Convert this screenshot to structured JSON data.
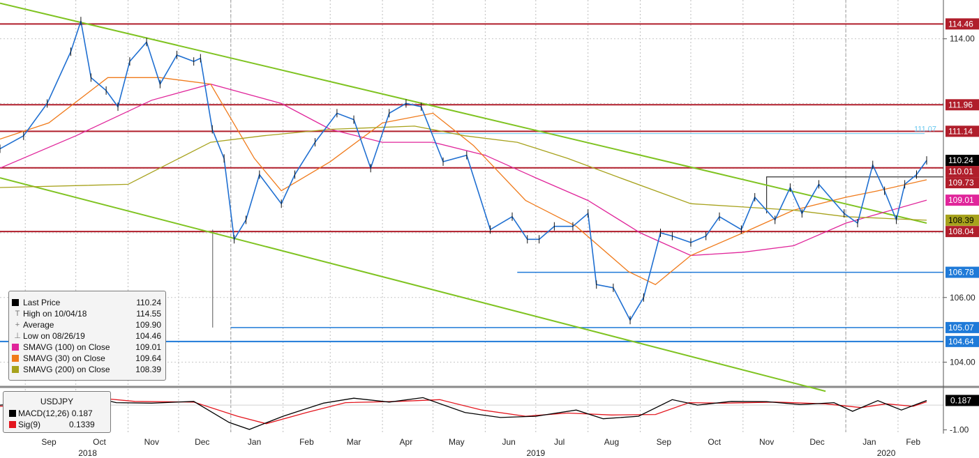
{
  "chart_data": [
    {
      "type": "line",
      "title": "",
      "ticker": "USDJPY",
      "xlabel": "",
      "ylabel": "",
      "ylim": [
        103.3,
        115.2
      ],
      "y_ticks": [
        "114.00",
        "106.00",
        "104.00"
      ],
      "month_labels": [
        "Sep",
        "Oct",
        "Nov",
        "Dec",
        "Jan",
        "Feb",
        "Mar",
        "Apr",
        "May",
        "Jun",
        "Jul",
        "Aug",
        "Sep",
        "Oct",
        "Nov",
        "Dec",
        "Jan",
        "Feb"
      ],
      "year_labels": [
        "2018",
        "2019",
        "2020"
      ],
      "grid": true,
      "x_start": "2018-08-17",
      "x_end": "2020-02-18",
      "series": [
        {
          "name": "Last Price",
          "color": "#1f6fd1",
          "points": [
            [
              "2018-08-17",
              110.6
            ],
            [
              "2018-08-31",
              111.0
            ],
            [
              "2018-09-14",
              112.0
            ],
            [
              "2018-09-28",
              113.6
            ],
            [
              "2018-10-04",
              114.55
            ],
            [
              "2018-10-10",
              112.8
            ],
            [
              "2018-10-19",
              112.4
            ],
            [
              "2018-10-26",
              111.9
            ],
            [
              "2018-11-02",
              113.3
            ],
            [
              "2018-11-12",
              113.9
            ],
            [
              "2018-11-20",
              112.6
            ],
            [
              "2018-11-30",
              113.5
            ],
            [
              "2018-12-10",
              113.3
            ],
            [
              "2018-12-14",
              113.4
            ],
            [
              "2018-12-21",
              111.2
            ],
            [
              "2018-12-28",
              110.3
            ],
            [
              "2019-01-03",
              107.8
            ],
            [
              "2019-01-10",
              108.4
            ],
            [
              "2019-01-18",
              109.8
            ],
            [
              "2019-01-31",
              108.9
            ],
            [
              "2019-02-08",
              109.8
            ],
            [
              "2019-02-20",
              110.8
            ],
            [
              "2019-03-05",
              111.7
            ],
            [
              "2019-03-15",
              111.5
            ],
            [
              "2019-03-25",
              110.0
            ],
            [
              "2019-04-05",
              111.7
            ],
            [
              "2019-04-15",
              112.0
            ],
            [
              "2019-04-24",
              111.9
            ],
            [
              "2019-05-07",
              110.2
            ],
            [
              "2019-05-21",
              110.4
            ],
            [
              "2019-06-04",
              108.1
            ],
            [
              "2019-06-17",
              108.5
            ],
            [
              "2019-06-26",
              107.8
            ],
            [
              "2019-07-03",
              107.8
            ],
            [
              "2019-07-12",
              108.2
            ],
            [
              "2019-07-23",
              108.2
            ],
            [
              "2019-08-01",
              108.6
            ],
            [
              "2019-08-06",
              106.4
            ],
            [
              "2019-08-16",
              106.3
            ],
            [
              "2019-08-26",
              105.3
            ],
            [
              "2019-09-03",
              106.0
            ],
            [
              "2019-09-13",
              108.0
            ],
            [
              "2019-09-20",
              107.9
            ],
            [
              "2019-10-01",
              107.7
            ],
            [
              "2019-10-10",
              107.9
            ],
            [
              "2019-10-18",
              108.5
            ],
            [
              "2019-10-31",
              108.1
            ],
            [
              "2019-11-08",
              109.1
            ],
            [
              "2019-11-20",
              108.4
            ],
            [
              "2019-11-29",
              109.4
            ],
            [
              "2019-12-06",
              108.6
            ],
            [
              "2019-12-16",
              109.5
            ],
            [
              "2019-12-31",
              108.6
            ],
            [
              "2020-01-08",
              108.3
            ],
            [
              "2020-01-17",
              110.1
            ],
            [
              "2020-01-24",
              109.3
            ],
            [
              "2020-01-31",
              108.4
            ],
            [
              "2020-02-05",
              109.5
            ],
            [
              "2020-02-12",
              109.8
            ],
            [
              "2020-02-18",
              110.24
            ]
          ]
        },
        {
          "name": "SMAVG (100) on Close",
          "color": "#e0259a",
          "points": [
            [
              "2018-08-17",
              110.0
            ],
            [
              "2018-10-01",
              111.0
            ],
            [
              "2018-11-15",
              112.1
            ],
            [
              "2018-12-20",
              112.6
            ],
            [
              "2019-01-31",
              112.0
            ],
            [
              "2019-03-01",
              111.2
            ],
            [
              "2019-04-01",
              110.8
            ],
            [
              "2019-05-01",
              110.8
            ],
            [
              "2019-06-01",
              110.4
            ],
            [
              "2019-07-01",
              109.7
            ],
            [
              "2019-08-01",
              109.0
            ],
            [
              "2019-09-01",
              108.0
            ],
            [
              "2019-10-01",
              107.3
            ],
            [
              "2019-11-01",
              107.4
            ],
            [
              "2019-12-01",
              107.6
            ],
            [
              "2020-01-01",
              108.3
            ],
            [
              "2020-02-18",
              109.01
            ]
          ]
        },
        {
          "name": "SMAVG (30) on Close",
          "color": "#f07a1a",
          "points": [
            [
              "2018-08-17",
              110.9
            ],
            [
              "2018-09-15",
              111.4
            ],
            [
              "2018-10-20",
              112.8
            ],
            [
              "2018-11-20",
              112.8
            ],
            [
              "2018-12-20",
              112.6
            ],
            [
              "2019-01-15",
              110.3
            ],
            [
              "2019-01-31",
              109.3
            ],
            [
              "2019-03-01",
              110.2
            ],
            [
              "2019-04-01",
              111.4
            ],
            [
              "2019-05-01",
              111.7
            ],
            [
              "2019-05-25",
              110.7
            ],
            [
              "2019-06-25",
              109.0
            ],
            [
              "2019-07-25",
              108.2
            ],
            [
              "2019-08-25",
              106.8
            ],
            [
              "2019-09-10",
              106.4
            ],
            [
              "2019-10-01",
              107.3
            ],
            [
              "2019-11-01",
              108.0
            ],
            [
              "2019-12-01",
              108.7
            ],
            [
              "2020-01-01",
              109.1
            ],
            [
              "2020-01-20",
              109.3
            ],
            [
              "2020-02-18",
              109.64
            ]
          ]
        },
        {
          "name": "SMAVG (200) on Close",
          "color": "#a7a21c",
          "points": [
            [
              "2018-08-17",
              109.4
            ],
            [
              "2018-11-01",
              109.5
            ],
            [
              "2018-12-20",
              110.8
            ],
            [
              "2019-01-20",
              111.0
            ],
            [
              "2019-03-01",
              111.2
            ],
            [
              "2019-04-20",
              111.3
            ],
            [
              "2019-05-20",
              111.0
            ],
            [
              "2019-06-20",
              110.8
            ],
            [
              "2019-07-20",
              110.3
            ],
            [
              "2019-08-20",
              109.7
            ],
            [
              "2019-10-01",
              108.9
            ],
            [
              "2019-11-01",
              108.8
            ],
            [
              "2019-12-01",
              108.7
            ],
            [
              "2020-01-01",
              108.5
            ],
            [
              "2020-02-18",
              108.39
            ]
          ]
        }
      ],
      "horizontal_lines": [
        {
          "value": 114.46,
          "label": "114.46",
          "color": "#b01e2b"
        },
        {
          "value": 111.96,
          "label": "111.96",
          "color": "#b01e2b"
        },
        {
          "value": 111.14,
          "label": "111.14",
          "color": "#b01e2b"
        },
        {
          "value": 111.07,
          "label": "111.07",
          "color": "#66c7ef",
          "style": "thin-right"
        },
        {
          "value": 110.01,
          "label": "110.01",
          "color": "#b01e2b"
        },
        {
          "value": 108.04,
          "label": "108.04",
          "color": "#b01e2b"
        },
        {
          "value": 104.64,
          "label": "104.64",
          "color": "#1f7ad8"
        }
      ],
      "partial_lines": [
        {
          "from": "2019-06-20",
          "value": 106.78,
          "label": "106.78",
          "color": "#1f7ad8"
        },
        {
          "from": "2019-01-01",
          "value": 105.07,
          "label": "105.07",
          "color": "#1f7ad8"
        }
      ],
      "resistance_box": {
        "from": "2019-11-15",
        "to": "2020-02-18",
        "top": 109.73,
        "label": "109.73"
      },
      "trend_lines": [
        {
          "color": "#7fc321",
          "from": [
            "2018-08-17",
            115.1
          ],
          "to": [
            "2020-02-18",
            108.3
          ]
        },
        {
          "color": "#7fc321",
          "from": [
            "2018-08-17",
            109.7
          ],
          "to": [
            "2019-12-20",
            103.1
          ]
        }
      ],
      "right_labels": [
        {
          "text": "114.46",
          "bg": "#b01e2b",
          "fg": "#ffffff",
          "value": 114.46
        },
        {
          "text": "111.96",
          "bg": "#b01e2b",
          "fg": "#ffffff",
          "value": 111.96
        },
        {
          "text": "111.14",
          "bg": "#b01e2b",
          "fg": "#ffffff",
          "value": 111.14
        },
        {
          "text": "110.24",
          "bg": "#000000",
          "fg": "#ffffff",
          "value": 110.24
        },
        {
          "text": "110.01",
          "bg": "#b01e2b",
          "fg": "#ffffff",
          "value": 110.01
        },
        {
          "text": "109.73",
          "bg": "#b01e2b",
          "fg": "#ffffff",
          "value": 109.73
        },
        {
          "text": "109.01",
          "bg": "#e0259a",
          "fg": "#ffffff",
          "value": 109.01
        },
        {
          "text": "108.39",
          "bg": "#a7a21c",
          "fg": "#000000",
          "value": 108.39
        },
        {
          "text": "108.04",
          "bg": "#b01e2b",
          "fg": "#ffffff",
          "value": 108.04
        },
        {
          "text": "106.78",
          "bg": "#1f7ad8",
          "fg": "#ffffff",
          "value": 106.78
        },
        {
          "text": "105.07",
          "bg": "#1f7ad8",
          "fg": "#ffffff",
          "value": 105.07
        },
        {
          "text": "104.64",
          "bg": "#1f7ad8",
          "fg": "#ffffff",
          "value": 104.64
        }
      ]
    },
    {
      "type": "line",
      "title": "USDJPY",
      "ylim": [
        -1.15,
        0.65
      ],
      "y_ticks": [
        "-1.00"
      ],
      "value_label": "0.187",
      "series": [
        {
          "name": "MACD(12,26)",
          "color": "#000000",
          "points": [
            [
              "2018-08-17",
              0.0
            ],
            [
              "2018-09-15",
              0.15
            ],
            [
              "2018-10-05",
              0.42
            ],
            [
              "2018-10-25",
              0.1
            ],
            [
              "2018-11-15",
              0.08
            ],
            [
              "2018-12-10",
              0.15
            ],
            [
              "2018-12-31",
              -0.7
            ],
            [
              "2019-01-12",
              -0.98
            ],
            [
              "2019-02-01",
              -0.45
            ],
            [
              "2019-02-25",
              0.08
            ],
            [
              "2019-03-15",
              0.28
            ],
            [
              "2019-04-05",
              0.12
            ],
            [
              "2019-04-25",
              0.3
            ],
            [
              "2019-05-20",
              -0.3
            ],
            [
              "2019-06-10",
              -0.5
            ],
            [
              "2019-07-01",
              -0.45
            ],
            [
              "2019-07-25",
              -0.2
            ],
            [
              "2019-08-10",
              -0.55
            ],
            [
              "2019-08-31",
              -0.45
            ],
            [
              "2019-09-20",
              0.22
            ],
            [
              "2019-10-05",
              0.0
            ],
            [
              "2019-10-25",
              0.15
            ],
            [
              "2019-11-15",
              0.14
            ],
            [
              "2019-12-05",
              0.02
            ],
            [
              "2019-12-25",
              0.1
            ],
            [
              "2020-01-05",
              -0.25
            ],
            [
              "2020-01-20",
              0.18
            ],
            [
              "2020-02-03",
              -0.2
            ],
            [
              "2020-02-18",
              0.187
            ]
          ]
        },
        {
          "name": "Sig(9)",
          "color": "#e3161e",
          "points": [
            [
              "2018-08-17",
              -0.05
            ],
            [
              "2018-09-20",
              0.05
            ],
            [
              "2018-10-12",
              0.3
            ],
            [
              "2018-11-05",
              0.15
            ],
            [
              "2018-12-10",
              0.12
            ],
            [
              "2019-01-05",
              -0.45
            ],
            [
              "2019-01-22",
              -0.75
            ],
            [
              "2019-02-15",
              -0.3
            ],
            [
              "2019-03-10",
              0.1
            ],
            [
              "2019-04-10",
              0.15
            ],
            [
              "2019-05-05",
              0.22
            ],
            [
              "2019-05-30",
              -0.2
            ],
            [
              "2019-06-25",
              -0.45
            ],
            [
              "2019-07-20",
              -0.32
            ],
            [
              "2019-08-15",
              -0.4
            ],
            [
              "2019-09-10",
              -0.38
            ],
            [
              "2019-09-30",
              0.1
            ],
            [
              "2019-10-20",
              0.08
            ],
            [
              "2019-11-20",
              0.12
            ],
            [
              "2019-12-20",
              0.05
            ],
            [
              "2020-01-10",
              -0.1
            ],
            [
              "2020-01-25",
              0.05
            ],
            [
              "2020-02-10",
              -0.05
            ],
            [
              "2020-02-18",
              0.1339
            ]
          ]
        }
      ]
    }
  ],
  "legend": {
    "rows": [
      {
        "glyph": "",
        "color": "#000000",
        "label": "Last Price",
        "value": "110.24"
      },
      {
        "glyph": "T",
        "color": "",
        "label": "High on 10/04/18",
        "value": "114.55"
      },
      {
        "glyph": "+",
        "color": "",
        "label": "Average",
        "value": "109.90"
      },
      {
        "glyph": "⊥",
        "color": "",
        "label": "Low on 08/26/19",
        "value": "104.46"
      },
      {
        "glyph": "",
        "color": "#e0259a",
        "label": "SMAVG (100)  on Close",
        "value": "109.01"
      },
      {
        "glyph": "",
        "color": "#f07a1a",
        "label": "SMAVG (30)  on Close",
        "value": "109.64"
      },
      {
        "glyph": "",
        "color": "#a7a21c",
        "label": "SMAVG (200)  on Close",
        "value": "108.39"
      }
    ]
  },
  "macd_legend": {
    "title": "USDJPY",
    "rows": [
      {
        "color": "#000000",
        "label": "MACD(12,26)",
        "value": "0.187"
      },
      {
        "color": "#e3161e",
        "label": "Sig(9)",
        "value": "0.1339"
      }
    ]
  }
}
